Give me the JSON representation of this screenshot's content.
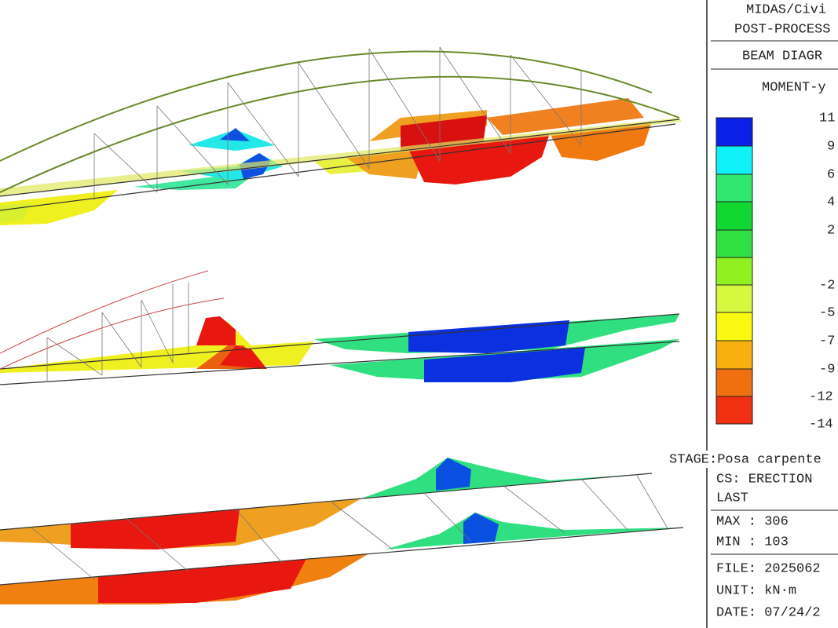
{
  "panel": {
    "header": [
      "MIDAS/Civi",
      "POST-PROCESS"
    ],
    "diagram_type": "BEAM DIAGR",
    "component": "MOMENT-y",
    "legend": {
      "labels": [
        "11",
        "9",
        "6",
        "4",
        "2",
        "-2",
        "-5",
        "-7",
        "-9",
        "-12",
        "-14"
      ]
    },
    "stage": "STAGE:Posa carpente",
    "cs": "CS: ERECTION",
    "step": "LAST",
    "max": "MAX : 306",
    "min": "MIN : 103",
    "file": "FILE: 2025062",
    "unit": "UNIT: kN·m",
    "date": "DATE: 07/24/2"
  }
}
